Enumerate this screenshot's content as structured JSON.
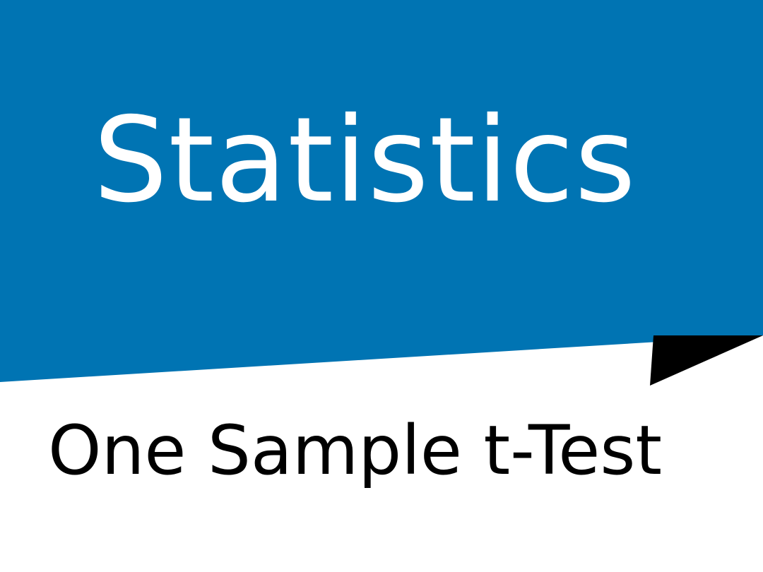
{
  "title": "Statistics",
  "subtitle": "One Sample t-Test",
  "colors": {
    "banner": "#0074b3",
    "fold": "#000000",
    "background": "#ffffff",
    "title_text": "#ffffff",
    "subtitle_text": "#000000"
  }
}
